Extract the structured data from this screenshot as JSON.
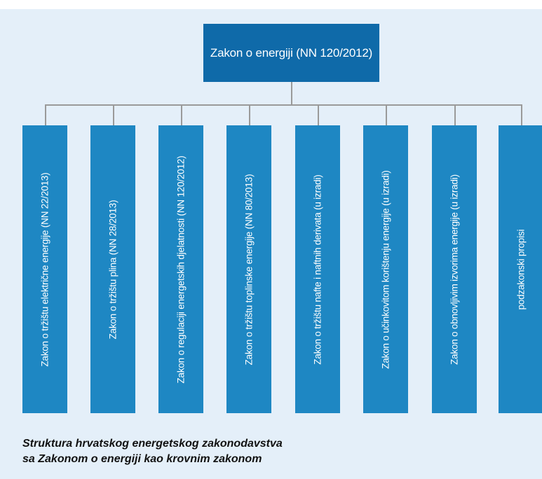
{
  "root": {
    "label": "Zakon o energiji (NN 120/2012)"
  },
  "leaves": [
    "Zakon o tržištu električne energije (NN 22/2013)",
    "Zakon o tržištu plina (NN 28/2013)",
    "Zakon o regulaciji energetskih djelatnosti (NN 120/2012)",
    "Zakon o tržištu toplinske energije (NN 80/2013)",
    "Zakon o tržištu nafte i naftnih derivata (u izradi)",
    "Zakon o učinkovitom korištenju energije (u izradi)",
    "Zakon o obnovljivim izvorima energije (u izradi)",
    "podzakonski propisi"
  ],
  "caption": {
    "line1": "Struktura hrvatskog energetskog zakonodavstva",
    "line2": "sa Zakonom o energiji kao krovnim zakonom"
  },
  "colors": {
    "background": "#e4eff9",
    "root_box": "#0f6aa9",
    "leaf_box": "#1e87c3",
    "connector": "#9a9a9a"
  }
}
